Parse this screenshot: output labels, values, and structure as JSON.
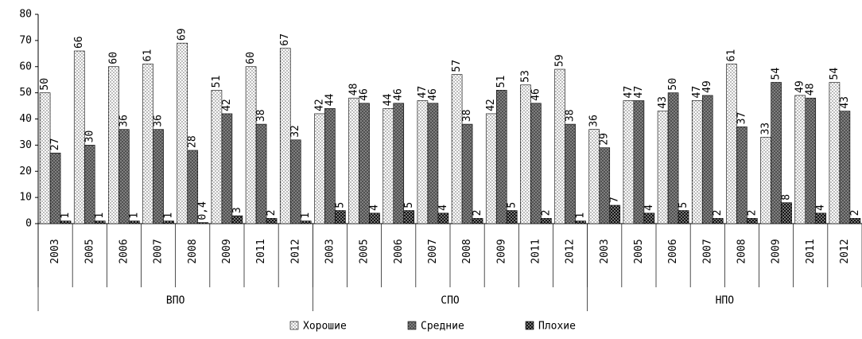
{
  "chart_data": {
    "type": "bar",
    "groups": [
      "ВПО",
      "СПО",
      "НПО"
    ],
    "categories": [
      "2003",
      "2005",
      "2006",
      "2007",
      "2008",
      "2009",
      "2011",
      "2012",
      "2003",
      "2005",
      "2006",
      "2007",
      "2008",
      "2009",
      "2011",
      "2012",
      "2003",
      "2005",
      "2006",
      "2007",
      "2008",
      "2009",
      "2011",
      "2012"
    ],
    "series": [
      {
        "name": "Хорошие",
        "color": "#ffffff",
        "values": [
          50,
          66,
          60,
          61,
          69,
          51,
          60,
          67,
          42,
          48,
          44,
          47,
          57,
          42,
          53,
          59,
          36,
          47,
          43,
          47,
          61,
          33,
          49,
          54
        ]
      },
      {
        "name": "Средние",
        "color": "#8c8c8c",
        "values": [
          27,
          30,
          36,
          36,
          28,
          42,
          38,
          32,
          44,
          46,
          46,
          46,
          38,
          51,
          46,
          38,
          29,
          47,
          50,
          49,
          37,
          54,
          48,
          43
        ]
      },
      {
        "name": "Плохие",
        "color": "#111111",
        "values": [
          1,
          1,
          1,
          1,
          0.4,
          3,
          2,
          1,
          5,
          4,
          5,
          4,
          2,
          5,
          2,
          1,
          7,
          4,
          5,
          2,
          2,
          8,
          4,
          2
        ],
        "value_labels": [
          "1",
          "1",
          "1",
          "1",
          "0,4",
          "3",
          "2",
          "1",
          "5",
          "4",
          "5",
          "4",
          "2",
          "5",
          "2",
          "1",
          "7",
          "4",
          "5",
          "2",
          "2",
          "8",
          "4",
          "2"
        ]
      }
    ],
    "ylim": [
      0,
      80
    ],
    "yticks": [
      0,
      10,
      20,
      30,
      40,
      50,
      60,
      70,
      80
    ],
    "legend": "bottom"
  }
}
